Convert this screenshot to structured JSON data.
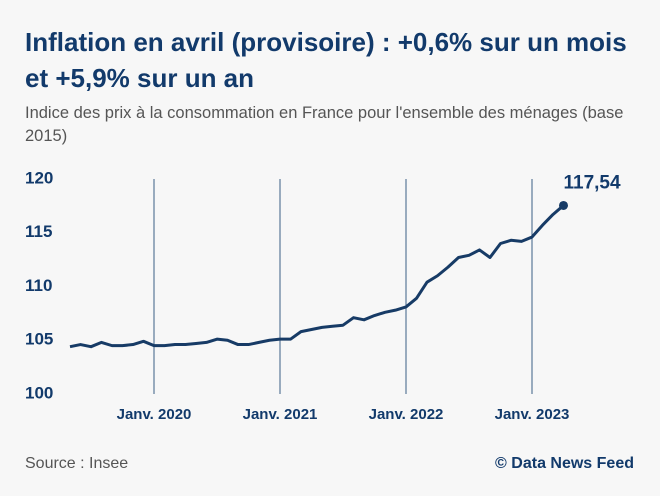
{
  "chart_data": {
    "type": "line",
    "title": "Inflation en avril (provisoire) : +0,6% sur un mois et +5,9% sur un an",
    "subtitle": "Indice des prix à la consommation en France pour l'ensemble des ménages (base 2015)",
    "source": "Source : Insee",
    "credit": "© Data News Feed",
    "categories": [
      null,
      null,
      null,
      null,
      null,
      null,
      null,
      null,
      "Janv. 2020",
      null,
      null,
      null,
      null,
      null,
      null,
      null,
      null,
      null,
      null,
      null,
      "Janv. 2021",
      null,
      null,
      null,
      null,
      null,
      null,
      null,
      null,
      null,
      null,
      null,
      "Janv. 2022",
      null,
      null,
      null,
      null,
      null,
      null,
      null,
      null,
      null,
      null,
      null,
      "Janv. 2023",
      null,
      null,
      null
    ],
    "series": [
      {
        "name": "Indice des prix à la consommation",
        "color": "#173b66",
        "values": [
          104.4,
          104.6,
          104.4,
          104.8,
          104.5,
          104.5,
          104.6,
          104.9,
          104.5,
          104.5,
          104.6,
          104.6,
          104.7,
          104.8,
          105.1,
          105.0,
          104.6,
          104.6,
          104.8,
          105.0,
          105.1,
          105.1,
          105.8,
          106.0,
          106.2,
          106.3,
          106.4,
          107.1,
          106.9,
          107.3,
          107.6,
          107.8,
          108.1,
          108.9,
          110.4,
          111.0,
          111.8,
          112.7,
          112.9,
          113.4,
          112.7,
          114.0,
          114.3,
          114.2,
          114.6,
          115.7,
          116.7,
          117.54
        ],
        "value_labels": [
          null,
          null,
          null,
          null,
          null,
          null,
          null,
          null,
          null,
          null,
          null,
          null,
          null,
          null,
          null,
          null,
          null,
          null,
          null,
          null,
          null,
          null,
          null,
          null,
          null,
          null,
          null,
          null,
          null,
          null,
          null,
          null,
          null,
          null,
          null,
          null,
          null,
          null,
          null,
          null,
          null,
          null,
          null,
          null,
          null,
          null,
          null,
          "117,54"
        ]
      }
    ],
    "ylim": [
      100,
      120
    ],
    "yticks": [
      100,
      105,
      110,
      115,
      120
    ],
    "grid": true
  }
}
